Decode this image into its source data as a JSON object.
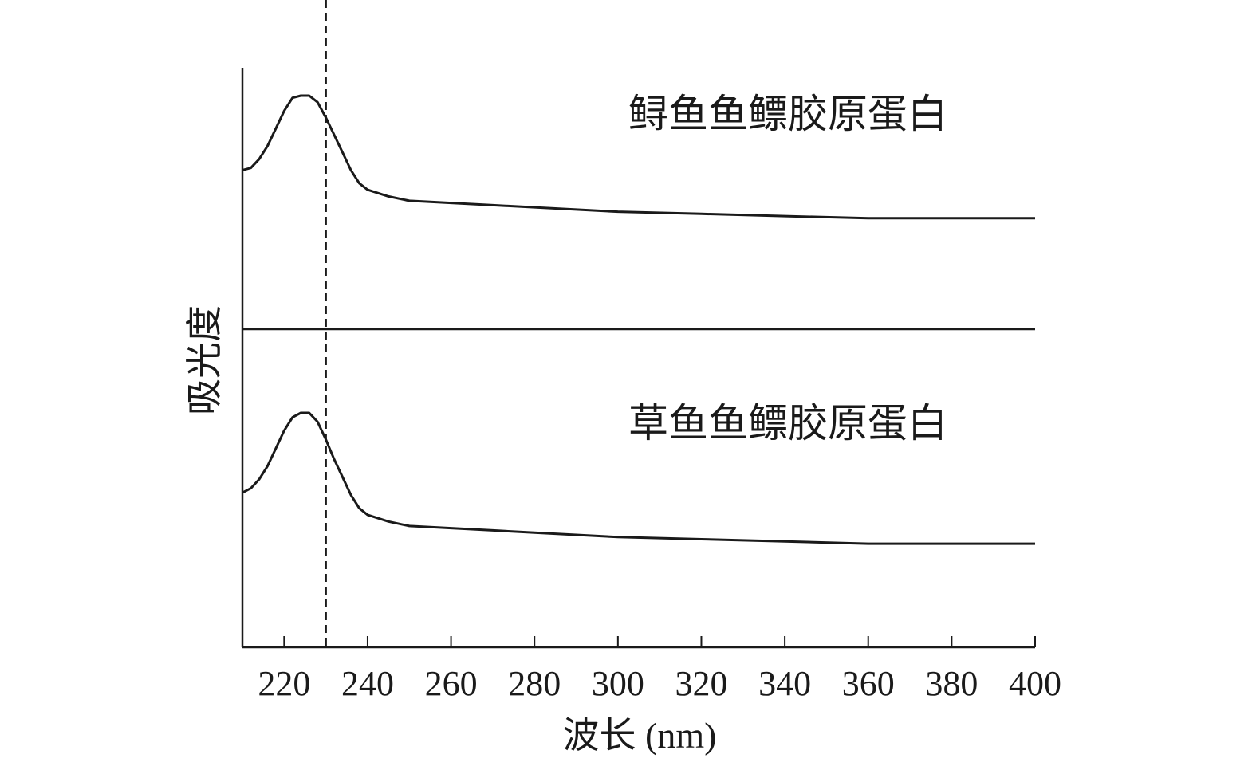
{
  "chart_data": {
    "type": "line",
    "xlabel": "波长 (nm)",
    "ylabel": "吸光度",
    "xlim": [
      210,
      400
    ],
    "xticks": [
      220,
      240,
      260,
      280,
      300,
      320,
      340,
      360,
      380,
      400
    ],
    "ylim": [
      0,
      1
    ],
    "reference_line_x": 230,
    "grid": false,
    "panels": [
      {
        "title": "鲟鱼鱼鳔胶原蛋白",
        "x": [
          210,
          212,
          214,
          216,
          218,
          220,
          222,
          224,
          226,
          228,
          230,
          232,
          234,
          236,
          238,
          240,
          245,
          250,
          260,
          270,
          280,
          290,
          300,
          320,
          340,
          360,
          380,
          400
        ],
        "y": [
          0.66,
          0.67,
          0.71,
          0.77,
          0.85,
          0.93,
          0.99,
          1.0,
          1.0,
          0.97,
          0.9,
          0.82,
          0.74,
          0.66,
          0.6,
          0.57,
          0.54,
          0.52,
          0.51,
          0.5,
          0.49,
          0.48,
          0.47,
          0.46,
          0.45,
          0.44,
          0.44,
          0.44
        ]
      },
      {
        "title": "草鱼鱼鳔胶原蛋白",
        "x": [
          210,
          212,
          214,
          216,
          218,
          220,
          222,
          224,
          226,
          228,
          230,
          232,
          234,
          236,
          238,
          240,
          245,
          250,
          260,
          270,
          280,
          290,
          300,
          320,
          340,
          360,
          380,
          400
        ],
        "y": [
          0.64,
          0.66,
          0.7,
          0.76,
          0.84,
          0.92,
          0.98,
          1.0,
          1.0,
          0.96,
          0.88,
          0.79,
          0.71,
          0.63,
          0.57,
          0.54,
          0.51,
          0.49,
          0.48,
          0.47,
          0.46,
          0.45,
          0.44,
          0.43,
          0.42,
          0.41,
          0.41,
          0.41
        ]
      }
    ]
  }
}
